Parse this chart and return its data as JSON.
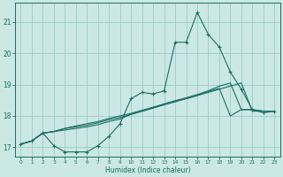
{
  "xlabel": "Humidex (Indice chaleur)",
  "background_color": "#cce8e4",
  "grid_color": "#99cccc",
  "line_color": "#1a6e65",
  "xlim": [
    -0.5,
    23.5
  ],
  "ylim": [
    16.7,
    21.6
  ],
  "yticks": [
    17,
    18,
    19,
    20,
    21
  ],
  "xticks": [
    0,
    1,
    2,
    3,
    4,
    5,
    6,
    7,
    8,
    9,
    10,
    11,
    12,
    13,
    14,
    15,
    16,
    17,
    18,
    19,
    20,
    21,
    22,
    23
  ],
  "main_line_x": [
    0,
    1,
    2,
    3,
    4,
    5,
    6,
    7,
    8,
    9,
    10,
    11,
    12,
    13,
    14,
    15,
    16,
    17,
    18,
    19,
    20,
    21,
    22,
    23
  ],
  "main_line_y": [
    17.1,
    17.2,
    17.45,
    17.05,
    16.85,
    16.85,
    16.85,
    17.05,
    17.35,
    17.75,
    18.55,
    18.75,
    18.7,
    18.8,
    20.35,
    20.35,
    21.3,
    20.6,
    20.2,
    19.4,
    18.85,
    18.2,
    18.1,
    18.15
  ],
  "line2_x": [
    0,
    1,
    2,
    3,
    4,
    5,
    6,
    7,
    8,
    9,
    10,
    11,
    12,
    13,
    14,
    15,
    16,
    17,
    18,
    19,
    20,
    21,
    22,
    23
  ],
  "line2_y": [
    17.1,
    17.2,
    17.45,
    17.5,
    17.55,
    17.6,
    17.65,
    17.72,
    17.82,
    17.9,
    18.05,
    18.15,
    18.25,
    18.38,
    18.48,
    18.58,
    18.68,
    18.8,
    18.95,
    19.05,
    18.2,
    18.2,
    18.15,
    18.15
  ],
  "line3_x": [
    0,
    1,
    2,
    3,
    4,
    5,
    6,
    7,
    8,
    9,
    10,
    11,
    12,
    13,
    14,
    15,
    16,
    17,
    18,
    19,
    20,
    21,
    22,
    23
  ],
  "line3_y": [
    17.1,
    17.2,
    17.45,
    17.5,
    17.6,
    17.65,
    17.7,
    17.78,
    17.88,
    17.95,
    18.05,
    18.15,
    18.25,
    18.35,
    18.45,
    18.55,
    18.65,
    18.78,
    18.88,
    18.0,
    18.2,
    18.2,
    18.15,
    18.15
  ],
  "line4_x": [
    0,
    1,
    2,
    3,
    4,
    5,
    6,
    7,
    8,
    9,
    10,
    11,
    12,
    13,
    14,
    15,
    16,
    17,
    18,
    19,
    20,
    21,
    22,
    23
  ],
  "line4_y": [
    17.1,
    17.2,
    17.45,
    17.5,
    17.6,
    17.68,
    17.75,
    17.82,
    17.92,
    18.0,
    18.08,
    18.18,
    18.28,
    18.38,
    18.48,
    18.55,
    18.65,
    18.75,
    18.85,
    18.95,
    19.05,
    18.15,
    18.15,
    18.15
  ]
}
